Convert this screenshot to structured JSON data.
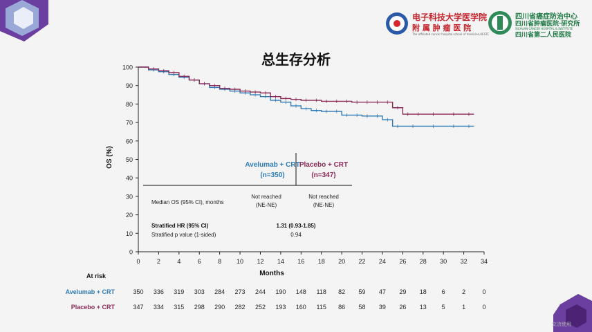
{
  "header": {
    "logo1_line1": "电子科技大学医学院",
    "logo1_line2": "附 属 肿 瘤 医 院",
    "logo1_small": "The affiliated cancer hospital school of medicine,UESTC",
    "logo2_line1": "四川省癌症防治中心",
    "logo2_line2": "四川省肿瘤医院·研究所",
    "logo2_line3": "四川省第二人民医院",
    "logo2_small": "SICHUAN CANCER HOSPITAL & INSTITUTE"
  },
  "slide_title": "总生存分析",
  "footer_note": "交流使用",
  "colors": {
    "avelumab": "#2e7bb5",
    "placebo": "#8b2a57",
    "accent_purple": "#5b2d8c"
  },
  "chart_data": {
    "type": "line",
    "xlabel": "Months",
    "ylabel": "OS (%)",
    "xlim": [
      0,
      34
    ],
    "ylim": [
      0,
      100
    ],
    "xticks": [
      0,
      2,
      4,
      6,
      8,
      10,
      12,
      14,
      16,
      18,
      20,
      22,
      24,
      26,
      28,
      30,
      32,
      34
    ],
    "yticks": [
      0,
      10,
      20,
      30,
      40,
      50,
      60,
      70,
      80,
      90,
      100
    ],
    "series": [
      {
        "name": "Avelumab + CRT",
        "color": "#2e7bb5",
        "x": [
          0,
          1,
          2,
          3,
          4,
          5,
          6,
          7,
          8,
          9,
          10,
          11,
          12,
          13,
          14,
          15,
          16,
          17,
          18,
          19,
          20,
          21,
          22,
          23,
          24,
          25,
          26,
          28,
          30,
          32,
          33
        ],
        "y": [
          100,
          98.5,
          97.5,
          96,
          94.5,
          93,
          91,
          89,
          88,
          87,
          86,
          85,
          84,
          82,
          81,
          79,
          77.5,
          76.5,
          76,
          76,
          74,
          74,
          73.5,
          73.5,
          71.5,
          68,
          68,
          68,
          68,
          68,
          68
        ]
      },
      {
        "name": "Placebo + CRT",
        "color": "#8b2a57",
        "x": [
          0,
          1,
          2,
          3,
          4,
          5,
          6,
          7,
          8,
          9,
          10,
          11,
          12,
          13,
          14,
          15,
          16,
          17,
          18,
          19,
          20,
          21,
          22,
          23,
          24,
          25,
          26,
          27,
          28,
          30,
          32,
          33
        ],
        "y": [
          100,
          99,
          98,
          97,
          95,
          93,
          91,
          90,
          88.5,
          88,
          87,
          86.5,
          86,
          84,
          83,
          82.5,
          82,
          82,
          81.5,
          81.5,
          81.5,
          81,
          81,
          81,
          81,
          78,
          74.5,
          74.5,
          74.5,
          74.5,
          74.5,
          74.5
        ]
      }
    ],
    "legend_table": {
      "col1_header": "Avelumab + CRT (n=350)",
      "col2_header": "Placebo + CRT (n=347)",
      "rows": [
        {
          "label": "Median OS (95% CI), months",
          "col1": "Not reached (NE-NE)",
          "col2": "Not reached (NE-NE)"
        },
        {
          "label": "Stratified HR (95% CI)",
          "value": "1.31 (0.93-1.85)"
        },
        {
          "label": "Stratified p value (1-sided)",
          "value": "0.94"
        }
      ]
    },
    "at_risk": {
      "label": "At risk",
      "rows": [
        {
          "name": "Avelumab + CRT",
          "values": [
            350,
            336,
            319,
            303,
            284,
            273,
            244,
            190,
            148,
            118,
            82,
            59,
            47,
            29,
            18,
            6,
            2,
            0
          ]
        },
        {
          "name": "Placebo + CRT",
          "values": [
            347,
            334,
            315,
            298,
            290,
            282,
            252,
            193,
            160,
            115,
            86,
            58,
            39,
            26,
            13,
            5,
            1,
            0
          ]
        }
      ]
    }
  }
}
